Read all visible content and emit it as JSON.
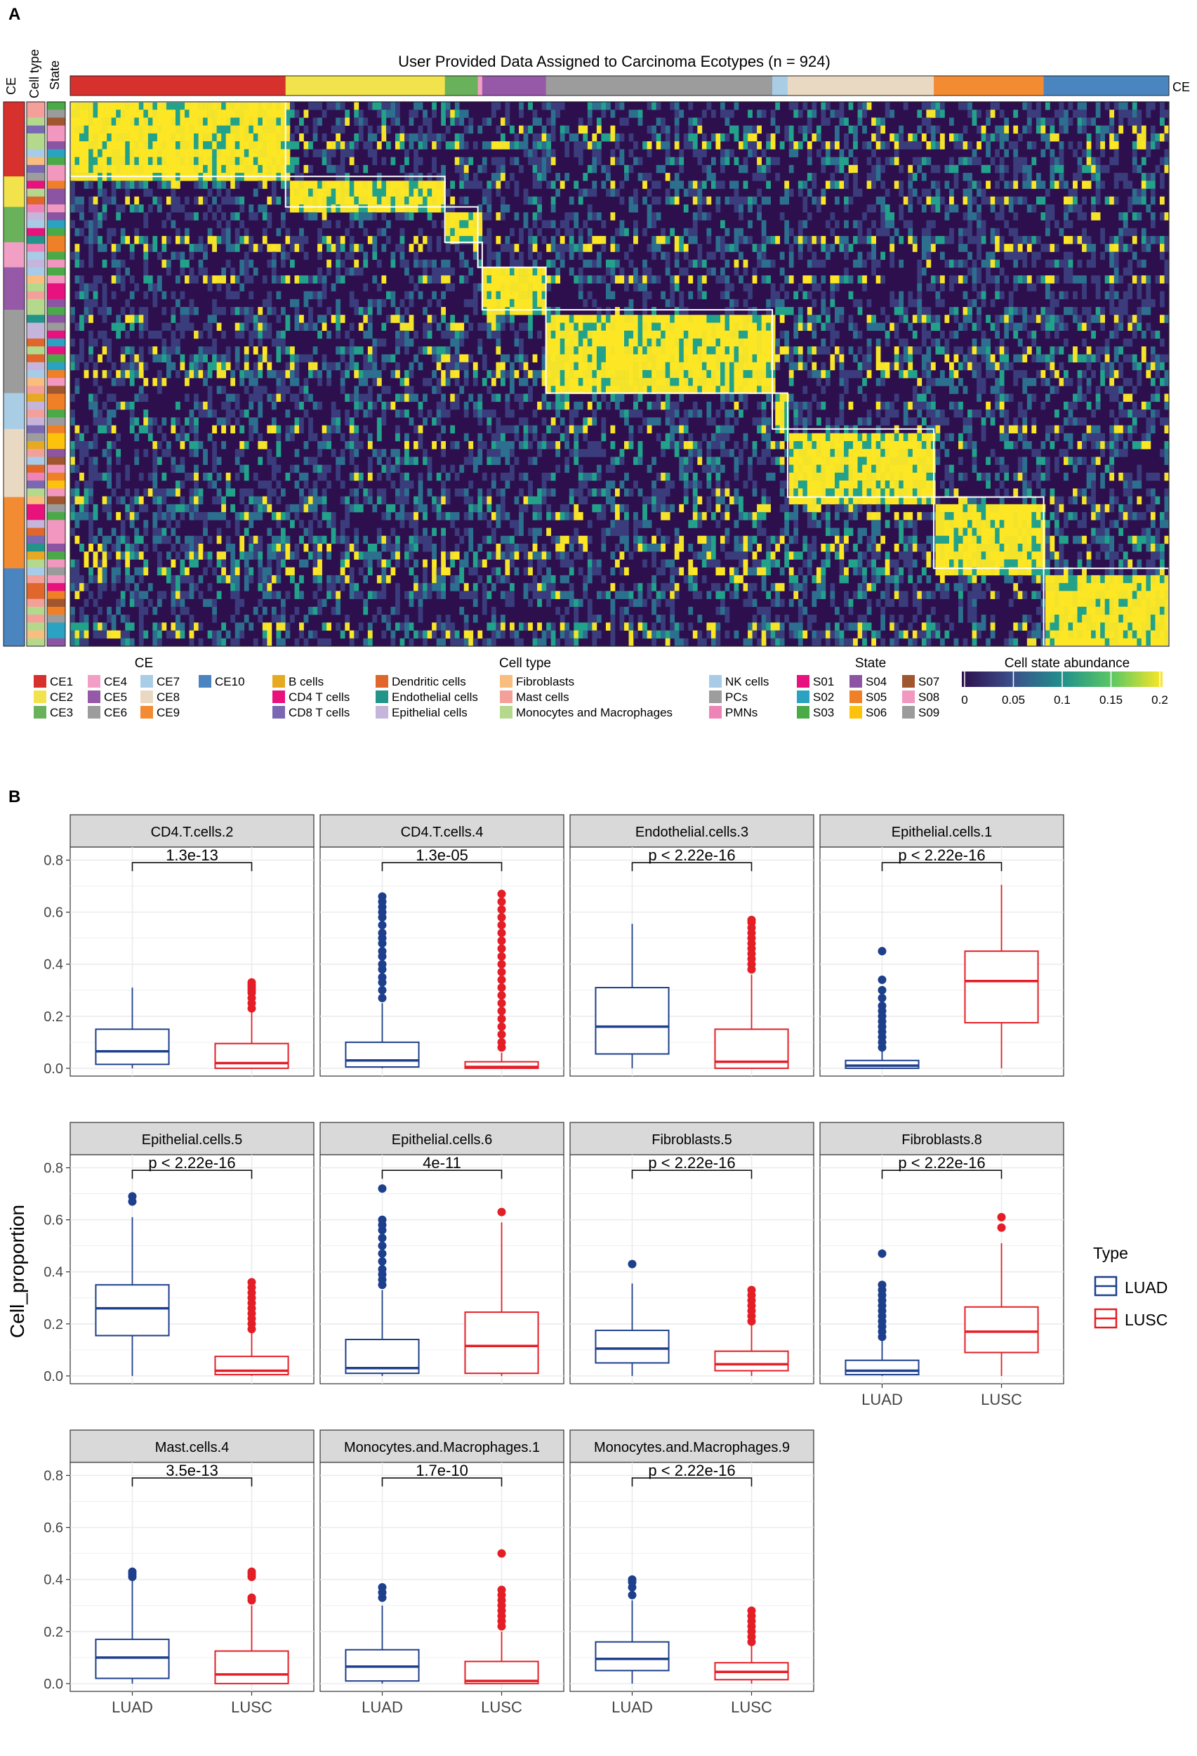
{
  "panel_a": {
    "label": "A",
    "title": "User Provided Data Assigned to Carcinoma Ecotypes (n = 924)",
    "left_strip_labels": [
      "CE",
      "Cell type",
      "State"
    ],
    "top_bar_label": "CE",
    "ce_column_fractions": [
      0.196,
      0.145,
      0.03,
      0.004,
      0.058,
      0.206,
      0.014,
      0.133,
      0.1,
      0.114
    ],
    "ce_row_fractions": [
      0.137,
      0.056,
      0.065,
      0.046,
      0.078,
      0.153,
      0.066,
      0.125,
      0.131,
      0.143
    ],
    "ce_colors": [
      "#d7312e",
      "#f2e34d",
      "#69b25b",
      "#f19fc4",
      "#9659a7",
      "#9c9c9c",
      "#aacde6",
      "#e9d9c3",
      "#f28b31",
      "#4a85bf"
    ],
    "cell_type_colors": [
      "#e6a922",
      "#e9127d",
      "#7a68b2",
      "#e0662b",
      "#23948a",
      "#c6b5db",
      "#f9bd7f",
      "#f4a09a",
      "#b4d98d",
      "#a8cce8",
      "#9d9d9d",
      "#ee83b7"
    ],
    "state_colors": [
      "#e8127e",
      "#2aa2c1",
      "#4baa48",
      "#8c55a3",
      "#f08028",
      "#fdc20c",
      "#a0562e",
      "#f197c0",
      "#9b9b9b"
    ],
    "legend": {
      "ce": {
        "title": "CE",
        "items": [
          {
            "label": "CE1",
            "color": "#d7312e"
          },
          {
            "label": "CE2",
            "color": "#f2e34d"
          },
          {
            "label": "CE3",
            "color": "#69b25b"
          },
          {
            "label": "CE4",
            "color": "#f19fc4"
          },
          {
            "label": "CE5",
            "color": "#9659a7"
          },
          {
            "label": "CE6",
            "color": "#9c9c9c"
          },
          {
            "label": "CE7",
            "color": "#aacde6"
          },
          {
            "label": "CE8",
            "color": "#e9d9c3"
          },
          {
            "label": "CE9",
            "color": "#f28b31"
          },
          {
            "label": "CE10",
            "color": "#4a85bf"
          }
        ]
      },
      "cell_type": {
        "title": "Cell type",
        "items": [
          {
            "label": "B cells",
            "color": "#e6a922"
          },
          {
            "label": "CD4 T cells",
            "color": "#e9127d"
          },
          {
            "label": "CD8 T cells",
            "color": "#7a68b2"
          },
          {
            "label": "Dendritic cells",
            "color": "#e0662b"
          },
          {
            "label": "Endothelial cells",
            "color": "#23948a"
          },
          {
            "label": "Epithelial cells",
            "color": "#c6b5db"
          },
          {
            "label": "Fibroblasts",
            "color": "#f9bd7f"
          },
          {
            "label": "Mast cells",
            "color": "#f4a09a"
          },
          {
            "label": "Monocytes and Macrophages",
            "color": "#b4d98d"
          },
          {
            "label": "NK cells",
            "color": "#a8cce8"
          },
          {
            "label": "PCs",
            "color": "#9d9d9d"
          },
          {
            "label": "PMNs",
            "color": "#ee83b7"
          }
        ]
      },
      "state": {
        "title": "State",
        "items": [
          {
            "label": "S01",
            "color": "#e8127e"
          },
          {
            "label": "S02",
            "color": "#2aa2c1"
          },
          {
            "label": "S03",
            "color": "#4baa48"
          },
          {
            "label": "S04",
            "color": "#8c55a3"
          },
          {
            "label": "S05",
            "color": "#f08028"
          },
          {
            "label": "S06",
            "color": "#fdc20c"
          },
          {
            "label": "S07",
            "color": "#a0562e"
          },
          {
            "label": "S08",
            "color": "#f197c0"
          },
          {
            "label": "S09",
            "color": "#9b9b9b"
          }
        ]
      },
      "abundance": {
        "title": "Cell state abundance",
        "ticks": [
          "0",
          "0.05",
          "0.1",
          "0.15",
          "0.2"
        ],
        "tick_values": [
          0,
          0.05,
          0.1,
          0.15,
          0.2
        ],
        "range": [
          0,
          0.2
        ],
        "colors": [
          "#2d0f4d",
          "#3b4f8a",
          "#21908c",
          "#5cc863",
          "#fde725"
        ]
      }
    }
  },
  "panel_b": {
    "label": "B",
    "ylabel": "Cell_proportion",
    "legend_title": "Type",
    "legend_items": [
      {
        "label": "LUAD",
        "color": "#1d3f8c"
      },
      {
        "label": "LUSC",
        "color": "#e41e26"
      }
    ],
    "chart_data": {
      "type": "box",
      "categories": [
        "LUAD",
        "LUSC"
      ],
      "ylim": [
        -0.03,
        0.85
      ],
      "yticks": [
        "0.0",
        "0.2",
        "0.4",
        "0.6",
        "0.8"
      ],
      "ytick_values": [
        0,
        0.2,
        0.4,
        0.6,
        0.8
      ],
      "panels": [
        {
          "title": "CD4.T.cells.2",
          "p": "1.3e-13",
          "boxes": [
            {
              "q1": 0.015,
              "med": 0.065,
              "q3": 0.15,
              "lo": 0,
              "hi": 0.31,
              "out": []
            },
            {
              "q1": 0,
              "med": 0.02,
              "q3": 0.095,
              "lo": 0,
              "hi": 0.22,
              "out": [
                0.23,
                0.25,
                0.27,
                0.29,
                0.3,
                0.31,
                0.32,
                0.33
              ]
            }
          ]
        },
        {
          "title": "CD4.T.cells.4",
          "p": "1.3e-05",
          "boxes": [
            {
              "q1": 0.005,
              "med": 0.03,
              "q3": 0.1,
              "lo": 0,
              "hi": 0.25,
              "out": [
                0.27,
                0.3,
                0.33,
                0.35,
                0.38,
                0.4,
                0.43,
                0.45,
                0.48,
                0.5,
                0.52,
                0.55,
                0.58,
                0.6,
                0.62,
                0.64,
                0.66
              ]
            },
            {
              "q1": 0,
              "med": 0.005,
              "q3": 0.025,
              "lo": 0,
              "hi": 0.06,
              "out": [
                0.08,
                0.1,
                0.13,
                0.16,
                0.19,
                0.22,
                0.25,
                0.28,
                0.31,
                0.34,
                0.37,
                0.4,
                0.43,
                0.46,
                0.49,
                0.52,
                0.55,
                0.58,
                0.61,
                0.64,
                0.67
              ]
            }
          ]
        },
        {
          "title": "Endothelial.cells.3",
          "p": "p < 2.22e-16",
          "boxes": [
            {
              "q1": 0.055,
              "med": 0.16,
              "q3": 0.31,
              "lo": 0,
              "hi": 0.555,
              "out": []
            },
            {
              "q1": 0,
              "med": 0.025,
              "q3": 0.15,
              "lo": 0,
              "hi": 0.36,
              "out": [
                0.38,
                0.4,
                0.42,
                0.44,
                0.46,
                0.48,
                0.5,
                0.52,
                0.54,
                0.56,
                0.57
              ]
            }
          ]
        },
        {
          "title": "Epithelial.cells.1",
          "p": "p < 2.22e-16",
          "boxes": [
            {
              "q1": 0,
              "med": 0.01,
              "q3": 0.03,
              "lo": 0,
              "hi": 0.07,
              "out": [
                0.08,
                0.1,
                0.12,
                0.14,
                0.16,
                0.18,
                0.2,
                0.22,
                0.24,
                0.27,
                0.3,
                0.34,
                0.45
              ]
            },
            {
              "q1": 0.175,
              "med": 0.335,
              "q3": 0.45,
              "lo": 0,
              "hi": 0.705,
              "out": []
            }
          ]
        },
        {
          "title": "Epithelial.cells.5",
          "p": "p < 2.22e-16",
          "boxes": [
            {
              "q1": 0.155,
              "med": 0.26,
              "q3": 0.35,
              "lo": 0,
              "hi": 0.61,
              "out": [
                0.67,
                0.69
              ]
            },
            {
              "q1": 0.005,
              "med": 0.02,
              "q3": 0.075,
              "lo": 0,
              "hi": 0.17,
              "out": [
                0.18,
                0.2,
                0.22,
                0.24,
                0.26,
                0.28,
                0.3,
                0.32,
                0.34,
                0.36
              ]
            }
          ]
        },
        {
          "title": "Epithelial.cells.6",
          "p": "4e-11",
          "boxes": [
            {
              "q1": 0.01,
              "med": 0.03,
              "q3": 0.14,
              "lo": 0,
              "hi": 0.33,
              "out": [
                0.35,
                0.37,
                0.39,
                0.41,
                0.44,
                0.47,
                0.5,
                0.53,
                0.56,
                0.58,
                0.6,
                0.72
              ]
            },
            {
              "q1": 0.01,
              "med": 0.115,
              "q3": 0.245,
              "lo": 0,
              "hi": 0.59,
              "out": [
                0.63
              ]
            }
          ]
        },
        {
          "title": "Fibroblasts.5",
          "p": "p < 2.22e-16",
          "boxes": [
            {
              "q1": 0.05,
              "med": 0.105,
              "q3": 0.175,
              "lo": 0,
              "hi": 0.355,
              "out": [
                0.43
              ]
            },
            {
              "q1": 0.02,
              "med": 0.045,
              "q3": 0.095,
              "lo": 0,
              "hi": 0.2,
              "out": [
                0.21,
                0.23,
                0.25,
                0.27,
                0.29,
                0.31,
                0.33
              ]
            }
          ]
        },
        {
          "title": "Fibroblasts.8",
          "p": "p < 2.22e-16",
          "boxes": [
            {
              "q1": 0.005,
              "med": 0.02,
              "q3": 0.06,
              "lo": 0,
              "hi": 0.14,
              "out": [
                0.15,
                0.17,
                0.19,
                0.21,
                0.23,
                0.25,
                0.27,
                0.29,
                0.31,
                0.33,
                0.35,
                0.47
              ]
            },
            {
              "q1": 0.09,
              "med": 0.17,
              "q3": 0.265,
              "lo": 0,
              "hi": 0.51,
              "out": [
                0.57,
                0.61
              ]
            }
          ]
        },
        {
          "title": "Mast.cells.4",
          "p": "3.5e-13",
          "boxes": [
            {
              "q1": 0.02,
              "med": 0.1,
              "q3": 0.17,
              "lo": 0,
              "hi": 0.395,
              "out": [
                0.41,
                0.42,
                0.43
              ]
            },
            {
              "q1": 0,
              "med": 0.035,
              "q3": 0.125,
              "lo": 0,
              "hi": 0.3,
              "out": [
                0.32,
                0.33,
                0.41,
                0.42,
                0.43
              ]
            }
          ]
        },
        {
          "title": "Monocytes.and.Macrophages.1",
          "p": "1.7e-10",
          "boxes": [
            {
              "q1": 0.01,
              "med": 0.065,
              "q3": 0.13,
              "lo": 0,
              "hi": 0.3,
              "out": [
                0.33,
                0.35,
                0.37
              ]
            },
            {
              "q1": 0,
              "med": 0.01,
              "q3": 0.085,
              "lo": 0,
              "hi": 0.2,
              "out": [
                0.22,
                0.24,
                0.26,
                0.28,
                0.3,
                0.32,
                0.34,
                0.36,
                0.5
              ]
            }
          ]
        },
        {
          "title": "Monocytes.and.Macrophages.9",
          "p": "p < 2.22e-16",
          "boxes": [
            {
              "q1": 0.05,
              "med": 0.095,
              "q3": 0.16,
              "lo": 0,
              "hi": 0.32,
              "out": [
                0.34,
                0.37,
                0.39,
                0.4
              ]
            },
            {
              "q1": 0.015,
              "med": 0.045,
              "q3": 0.08,
              "lo": 0,
              "hi": 0.15,
              "out": [
                0.16,
                0.18,
                0.2,
                0.22,
                0.24,
                0.26,
                0.28
              ]
            }
          ]
        }
      ]
    }
  }
}
